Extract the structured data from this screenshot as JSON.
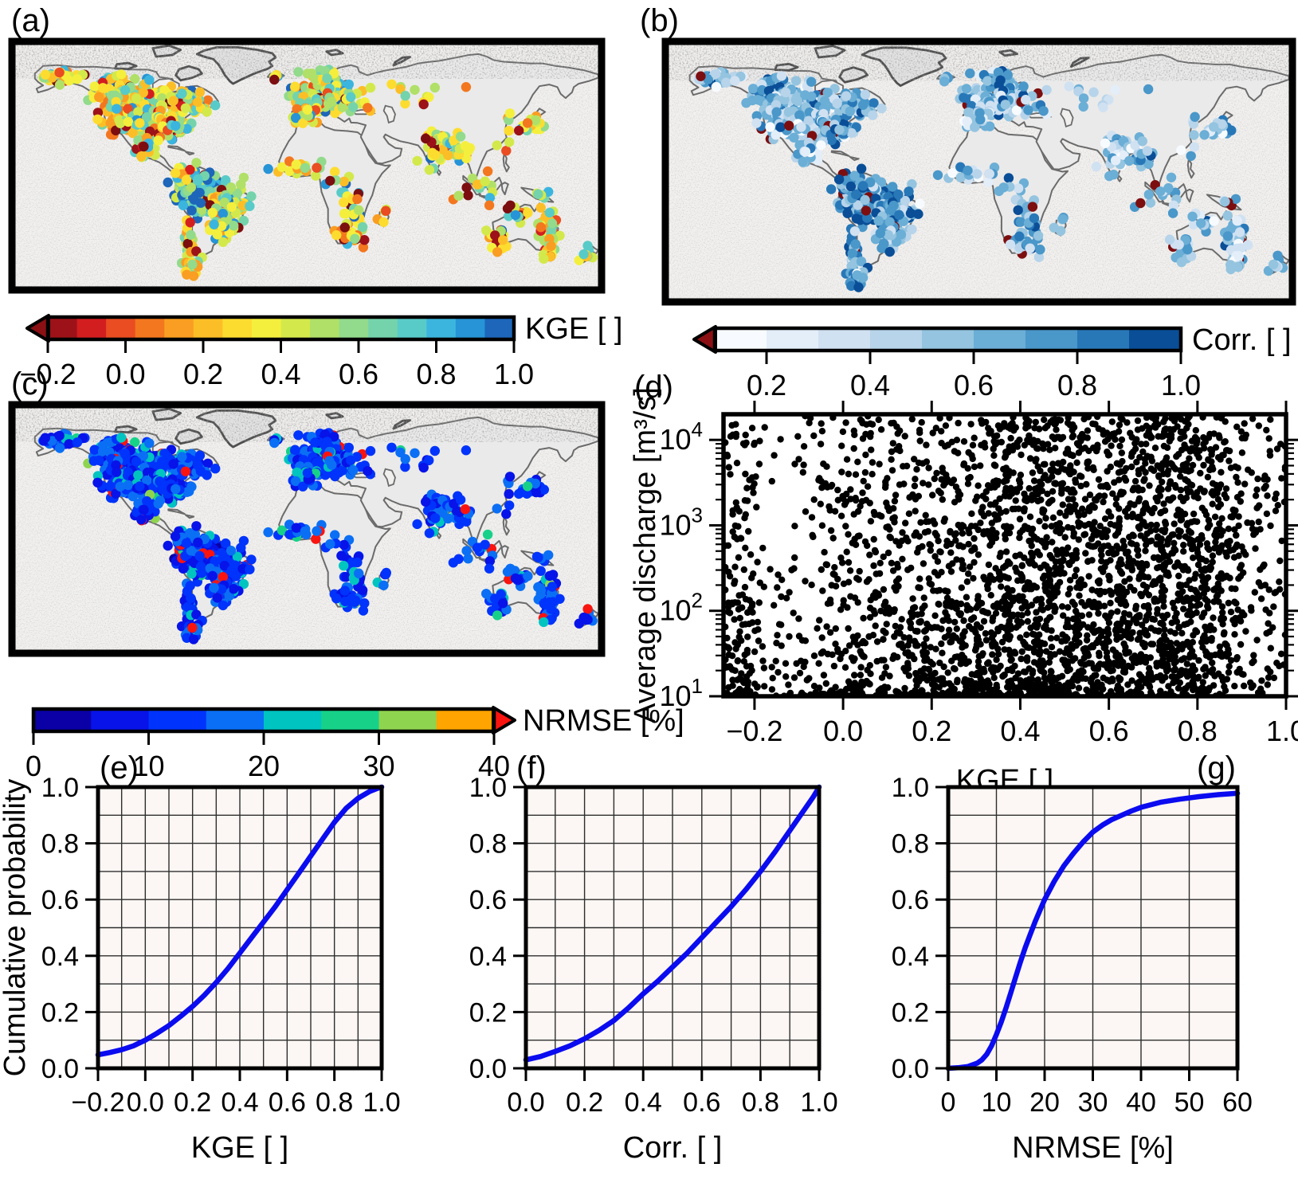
{
  "figure": {
    "background": "#ffffff",
    "panel_labels": {
      "a": "(a)",
      "b": "(b)",
      "c": "(c)",
      "d": "(d)",
      "e": "(e)",
      "f": "(f)",
      "g": "(g)"
    }
  },
  "chart_data": [
    {
      "id": "a",
      "type": "map-scatter",
      "projection": "equirectangular",
      "lon_range": [
        -180,
        180
      ],
      "lat_range": [
        -62,
        85
      ],
      "variable": "KGE",
      "n_stations_approx": 1512,
      "colorbar": {
        "label": "KGE [ ]",
        "min": -0.2,
        "max": 1.0,
        "tick_labels": [
          "−0.2",
          "0.0",
          "0.2",
          "0.4",
          "0.6",
          "0.8",
          "1.0"
        ],
        "tick_values": [
          -0.2,
          0.0,
          0.2,
          0.4,
          0.6,
          0.8,
          1.0
        ],
        "segment_colors": [
          "#9c1218",
          "#d31e20",
          "#e94d21",
          "#f3771f",
          "#f99e22",
          "#fcbe27",
          "#fddc30",
          "#f4ef3d",
          "#d3e94b",
          "#b0e068",
          "#92da8c",
          "#74d3ab",
          "#58cbc8",
          "#3bb5de",
          "#2694d6",
          "#1d66ba"
        ],
        "under_arrow_color": "#8a1014",
        "over_arrow_color": null
      },
      "dot_style": {
        "radius": 6.2,
        "mean_mode": "q",
        "mean_scale": 15,
        "sigma": 3.4,
        "abs_noise": false,
        "outlier_prob": 0.045,
        "outlier_color": "#7c0e10"
      }
    },
    {
      "id": "b",
      "type": "map-scatter",
      "projection": "equirectangular",
      "lon_range": [
        -180,
        180
      ],
      "lat_range": [
        -62,
        85
      ],
      "variable": "Corr.",
      "n_stations_approx": 1512,
      "colorbar": {
        "label": "Corr. [ ]",
        "min": 0.1,
        "max": 1.0,
        "tick_labels": [
          "0.2",
          "0.4",
          "0.6",
          "0.8",
          "1.0"
        ],
        "tick_values": [
          0.2,
          0.4,
          0.6,
          0.8,
          1.0
        ],
        "segment_colors": [
          "#f7fbff",
          "#e3eef9",
          "#d0e1f2",
          "#b7d4ea",
          "#94c4df",
          "#6baed6",
          "#4a97c9",
          "#2878b8",
          "#0a4e97"
        ],
        "under_arrow_color": "#8a1014",
        "over_arrow_color": null
      },
      "dot_style": {
        "radius": 6.2,
        "mean_mode": "q",
        "mean_scale": 8,
        "sigma": 2.1,
        "abs_noise": false,
        "outlier_prob": 0.03,
        "outlier_color": "#7c0e10"
      }
    },
    {
      "id": "c",
      "type": "map-scatter",
      "projection": "equirectangular",
      "lon_range": [
        -180,
        180
      ],
      "lat_range": [
        -62,
        85
      ],
      "variable": "NRMSE",
      "n_stations_approx": 1512,
      "colorbar": {
        "label": "NRMSE [%]",
        "min": 0,
        "max": 40,
        "tick_labels": [
          "0",
          "10",
          "20",
          "30",
          "40"
        ],
        "tick_values": [
          0,
          10,
          20,
          30,
          40
        ],
        "segment_colors": [
          "#0a00a6",
          "#0713e8",
          "#0033fb",
          "#0a6ff5",
          "#00c4c0",
          "#17d189",
          "#8fd44f",
          "#ffa400"
        ],
        "under_arrow_color": null,
        "over_arrow_color": "#f91410"
      },
      "dot_style": {
        "radius": 6.2,
        "mean_mode": "one-minus-q",
        "mean_scale": 2.2,
        "sigma": 1.6,
        "abs_noise": true,
        "outlier_prob": 0.035,
        "outlier_color": "#f91410"
      }
    },
    {
      "id": "d",
      "type": "scatter",
      "xlabel": "KGE [ ]",
      "ylabel": "Average discharge [m³/s]",
      "xlim": [
        -0.27,
        1.0
      ],
      "xtick_labels": [
        "−0.2",
        "0.0",
        "0.2",
        "0.4",
        "0.6",
        "0.8",
        "1.0"
      ],
      "xtick_values": [
        -0.2,
        0.0,
        0.2,
        0.4,
        0.6,
        0.8,
        1.0
      ],
      "y_scale": "log10",
      "ylim": [
        10,
        20000
      ],
      "ylim_log10": [
        1,
        4.3
      ],
      "ytick_exponents": [
        1,
        2,
        3,
        4
      ],
      "n_points": 3200,
      "point_color": "#000000",
      "point_radius": 4.2
    },
    {
      "id": "e",
      "type": "line",
      "xlabel": "KGE [ ]",
      "ylabel": "Cumulative probability",
      "xlim": [
        -0.2,
        1.0
      ],
      "ylim": [
        0.0,
        1.0
      ],
      "xtick_labels": [
        "−0.2",
        "0.0",
        "0.2",
        "0.4",
        "0.6",
        "0.8",
        "1.0"
      ],
      "xtick_values": [
        -0.2,
        0.0,
        0.2,
        0.4,
        0.6,
        0.8,
        1.0
      ],
      "ytick_labels": [
        "0.0",
        "0.2",
        "0.4",
        "0.6",
        "0.8",
        "1.0"
      ],
      "ytick_values": [
        0,
        0.2,
        0.4,
        0.6,
        0.8,
        1.0
      ],
      "grid_step_x": 0.1,
      "grid_step_y": 0.1,
      "line_color": "#0b0bf0",
      "plot_bg": "#fcf7f4",
      "points": [
        [
          -0.2,
          0.048
        ],
        [
          -0.15,
          0.056
        ],
        [
          -0.1,
          0.066
        ],
        [
          -0.05,
          0.08
        ],
        [
          0.0,
          0.1
        ],
        [
          0.05,
          0.125
        ],
        [
          0.1,
          0.152
        ],
        [
          0.15,
          0.185
        ],
        [
          0.2,
          0.22
        ],
        [
          0.25,
          0.26
        ],
        [
          0.3,
          0.305
        ],
        [
          0.35,
          0.355
        ],
        [
          0.4,
          0.41
        ],
        [
          0.45,
          0.465
        ],
        [
          0.5,
          0.52
        ],
        [
          0.55,
          0.575
        ],
        [
          0.6,
          0.635
        ],
        [
          0.65,
          0.695
        ],
        [
          0.7,
          0.755
        ],
        [
          0.75,
          0.815
        ],
        [
          0.8,
          0.875
        ],
        [
          0.85,
          0.925
        ],
        [
          0.9,
          0.96
        ],
        [
          0.95,
          0.985
        ],
        [
          0.98,
          0.995
        ],
        [
          1.0,
          1.0
        ]
      ]
    },
    {
      "id": "f",
      "type": "line",
      "xlabel": "Corr. [ ]",
      "ylabel": null,
      "xlim": [
        0.0,
        1.0
      ],
      "ylim": [
        0.0,
        1.0
      ],
      "xtick_labels": [
        "0.0",
        "0.2",
        "0.4",
        "0.6",
        "0.8",
        "1.0"
      ],
      "xtick_values": [
        0.0,
        0.2,
        0.4,
        0.6,
        0.8,
        1.0
      ],
      "ytick_labels": [
        "0.0",
        "0.2",
        "0.4",
        "0.6",
        "0.8",
        "1.0"
      ],
      "ytick_values": [
        0,
        0.2,
        0.4,
        0.6,
        0.8,
        1.0
      ],
      "grid_step_x": 0.1,
      "grid_step_y": 0.1,
      "line_color": "#0b0bf0",
      "plot_bg": "#fcf7f4",
      "points": [
        [
          0.0,
          0.03
        ],
        [
          0.05,
          0.042
        ],
        [
          0.1,
          0.06
        ],
        [
          0.15,
          0.08
        ],
        [
          0.2,
          0.105
        ],
        [
          0.25,
          0.135
        ],
        [
          0.3,
          0.17
        ],
        [
          0.35,
          0.215
        ],
        [
          0.4,
          0.265
        ],
        [
          0.45,
          0.31
        ],
        [
          0.5,
          0.36
        ],
        [
          0.55,
          0.41
        ],
        [
          0.6,
          0.465
        ],
        [
          0.65,
          0.52
        ],
        [
          0.7,
          0.575
        ],
        [
          0.75,
          0.635
        ],
        [
          0.8,
          0.7
        ],
        [
          0.85,
          0.77
        ],
        [
          0.9,
          0.845
        ],
        [
          0.95,
          0.92
        ],
        [
          0.98,
          0.965
        ],
        [
          1.0,
          1.0
        ]
      ]
    },
    {
      "id": "g",
      "type": "line",
      "xlabel": "NRMSE [%]",
      "ylabel": null,
      "xlim": [
        0,
        60
      ],
      "ylim": [
        0.0,
        1.0
      ],
      "xtick_labels": [
        "0",
        "10",
        "20",
        "30",
        "40",
        "50",
        "60"
      ],
      "xtick_values": [
        0,
        10,
        20,
        30,
        40,
        50,
        60
      ],
      "ytick_labels": [
        "0.0",
        "0.2",
        "0.4",
        "0.6",
        "0.8",
        "1.0"
      ],
      "ytick_values": [
        0,
        0.2,
        0.4,
        0.6,
        0.8,
        1.0
      ],
      "grid_step_x": 10,
      "grid_step_y": 0.1,
      "line_color": "#0b0bf0",
      "plot_bg": "#fcf7f4",
      "points": [
        [
          0,
          0.0
        ],
        [
          2,
          0.002
        ],
        [
          4,
          0.006
        ],
        [
          6,
          0.018
        ],
        [
          7,
          0.03
        ],
        [
          8,
          0.05
        ],
        [
          9,
          0.08
        ],
        [
          10,
          0.12
        ],
        [
          11,
          0.165
        ],
        [
          12,
          0.215
        ],
        [
          13,
          0.27
        ],
        [
          14,
          0.325
        ],
        [
          15,
          0.38
        ],
        [
          16,
          0.43
        ],
        [
          17,
          0.475
        ],
        [
          18,
          0.52
        ],
        [
          19,
          0.56
        ],
        [
          20,
          0.6
        ],
        [
          22,
          0.665
        ],
        [
          24,
          0.72
        ],
        [
          26,
          0.765
        ],
        [
          28,
          0.805
        ],
        [
          30,
          0.84
        ],
        [
          32,
          0.865
        ],
        [
          34,
          0.885
        ],
        [
          36,
          0.9
        ],
        [
          38,
          0.915
        ],
        [
          40,
          0.928
        ],
        [
          44,
          0.946
        ],
        [
          48,
          0.957
        ],
        [
          52,
          0.966
        ],
        [
          56,
          0.973
        ],
        [
          60,
          0.978
        ]
      ]
    }
  ],
  "stations": {
    "cluster_format": [
      "lon",
      "lat",
      "lon_sd",
      "lat_sd",
      "count",
      "quality"
    ],
    "clusters": [
      [
        -150,
        64,
        6,
        2.5,
        35,
        0.55
      ],
      [
        -120,
        56,
        6,
        4.5,
        70,
        0.6
      ],
      [
        -100,
        53,
        9,
        3.5,
        85,
        0.5
      ],
      [
        -114,
        42,
        5.5,
        5.5,
        75,
        0.45
      ],
      [
        -93,
        40,
        9,
        5,
        160,
        0.5
      ],
      [
        -82,
        34,
        5,
        3.5,
        60,
        0.55
      ],
      [
        -99,
        22,
        5,
        4,
        22,
        0.5
      ],
      [
        -71,
        49,
        5,
        3.5,
        40,
        0.6
      ],
      [
        -19,
        64.5,
        2,
        1,
        6,
        0.6
      ],
      [
        -4,
        54,
        3,
        2.5,
        25,
        0.55
      ],
      [
        12,
        62,
        5,
        3.5,
        55,
        0.6
      ],
      [
        8,
        49,
        6,
        3.5,
        90,
        0.55
      ],
      [
        -2,
        41.5,
        4,
        2.5,
        30,
        0.5
      ],
      [
        25,
        50,
        6,
        4,
        35,
        0.55
      ],
      [
        60,
        57,
        24,
        4,
        14,
        0.45
      ],
      [
        78,
        22,
        4.5,
        4.5,
        55,
        0.45
      ],
      [
        93,
        22,
        4,
        3.5,
        20,
        0.5
      ],
      [
        139,
        37,
        2.5,
        3,
        28,
        0.55
      ],
      [
        124,
        35,
        5,
        5,
        12,
        0.5
      ],
      [
        108,
        -1,
        9,
        5,
        14,
        0.55
      ],
      [
        -6,
        9,
        7,
        2.5,
        22,
        0.5
      ],
      [
        18,
        3,
        7,
        5,
        10,
        0.6
      ],
      [
        30,
        -14,
        5,
        7,
        20,
        0.6
      ],
      [
        26,
        -29,
        5,
        3,
        25,
        0.5
      ],
      [
        47,
        -19,
        1.5,
        3,
        4,
        0.55
      ],
      [
        -63,
        -5,
        8,
        5.5,
        180,
        0.8
      ],
      [
        -46,
        -12,
        5.5,
        5.5,
        80,
        0.6
      ],
      [
        -52,
        -25,
        4.5,
        4.5,
        60,
        0.55
      ],
      [
        -72,
        -37,
        1.8,
        7,
        35,
        0.55
      ],
      [
        -69,
        -48,
        2.5,
        4,
        20,
        0.5
      ],
      [
        -71,
        5,
        4.5,
        3.5,
        30,
        0.65
      ],
      [
        148,
        -29,
        3,
        7,
        45,
        0.45
      ],
      [
        132,
        -15,
        7,
        2.5,
        15,
        0.5
      ],
      [
        116,
        -31,
        2.5,
        4,
        15,
        0.5
      ],
      [
        147,
        -42,
        1.5,
        1.2,
        6,
        0.55
      ],
      [
        171,
        -42,
        2.5,
        2.5,
        8,
        0.55
      ],
      [
        143,
        -6,
        3,
        1.5,
        6,
        0.6
      ]
    ]
  }
}
